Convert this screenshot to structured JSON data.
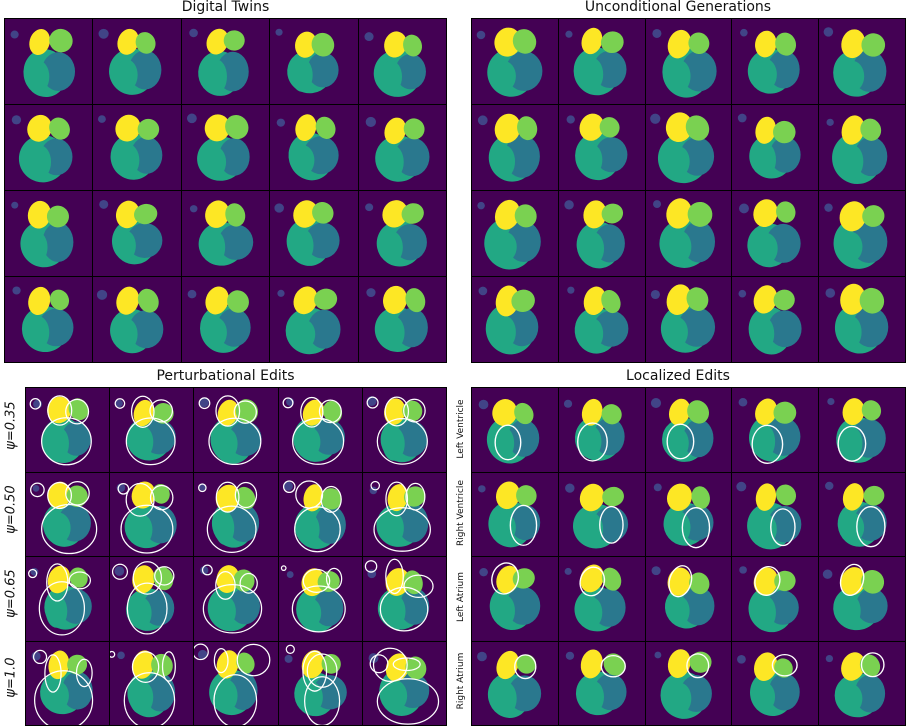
{
  "panels": {
    "digital_twins": {
      "title": "Digital Twins"
    },
    "unconditional": {
      "title": "Unconditional Generations"
    },
    "perturbational": {
      "title": "Perturbational Edits",
      "row_labels": [
        "ψ=0.35",
        "ψ=0.50",
        "ψ=0.65",
        "ψ=1.0"
      ]
    },
    "localized": {
      "title": "Localized Edits",
      "row_labels": [
        "Left Ventricle",
        "Right Ventricle",
        "Left Atrium",
        "Right Atrium"
      ]
    }
  },
  "colors": {
    "background": "#440154",
    "left_atrium": "#fde725",
    "right_atrium": "#7ad151",
    "left_ventricle": "#22a884",
    "right_ventricle": "#2a788e",
    "aorta": "#414487",
    "contour": "#ffffff"
  }
}
